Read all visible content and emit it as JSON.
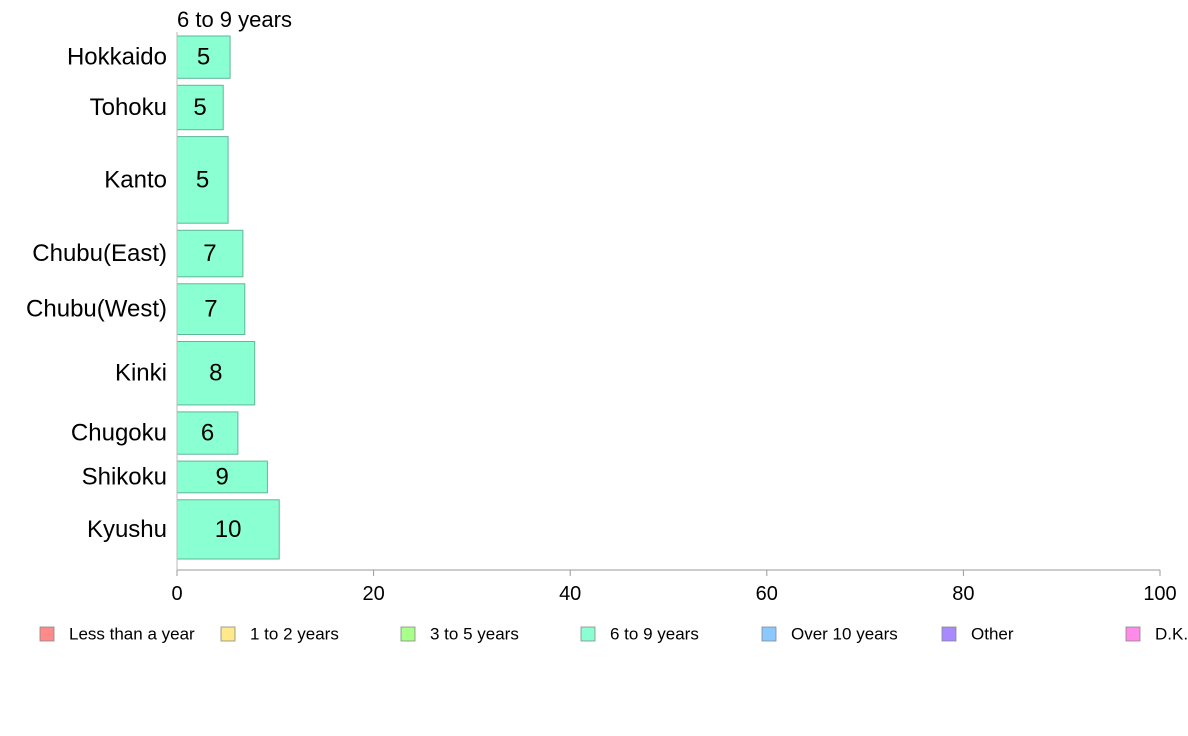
{
  "chart_data": {
    "type": "bar",
    "orientation": "horizontal",
    "title": "",
    "panel_title": "6 to 9 years",
    "xlabel": "",
    "ylabel": "",
    "xlim": [
      0,
      100
    ],
    "x_ticks": [
      0,
      20,
      40,
      60,
      80,
      100
    ],
    "grid": false,
    "legend_position": "bottom",
    "categories": [
      "Hokkaido",
      "Tohoku",
      "Kanto",
      "Chubu(East)",
      "Chubu(West)",
      "Kinki",
      "Chugoku",
      "Shikoku",
      "Kyushu"
    ],
    "category_weights": [
      1.0,
      1.05,
      2.05,
      1.1,
      1.2,
      1.5,
      1.0,
      0.75,
      1.4
    ],
    "series": [
      {
        "name": "6 to 9 years",
        "color": "#8affd2",
        "values": [
          5.4,
          4.7,
          5.2,
          6.7,
          6.9,
          7.9,
          6.2,
          9.2,
          10.4
        ],
        "labels": [
          "5",
          "5",
          "5",
          "7",
          "7",
          "8",
          "6",
          "9",
          "10"
        ]
      }
    ],
    "legend": [
      {
        "label": "Less than a year",
        "color": "#ff8a8a"
      },
      {
        "label": "1 to 2 years",
        "color": "#ffe98a"
      },
      {
        "label": "3 to 5 years",
        "color": "#a8ff8a"
      },
      {
        "label": "6 to 9 years",
        "color": "#8affd2"
      },
      {
        "label": "Over 10 years",
        "color": "#8ac8ff"
      },
      {
        "label": "Other",
        "color": "#a88aff"
      },
      {
        "label": "D.K.",
        "color": "#ff8ae9"
      }
    ]
  }
}
